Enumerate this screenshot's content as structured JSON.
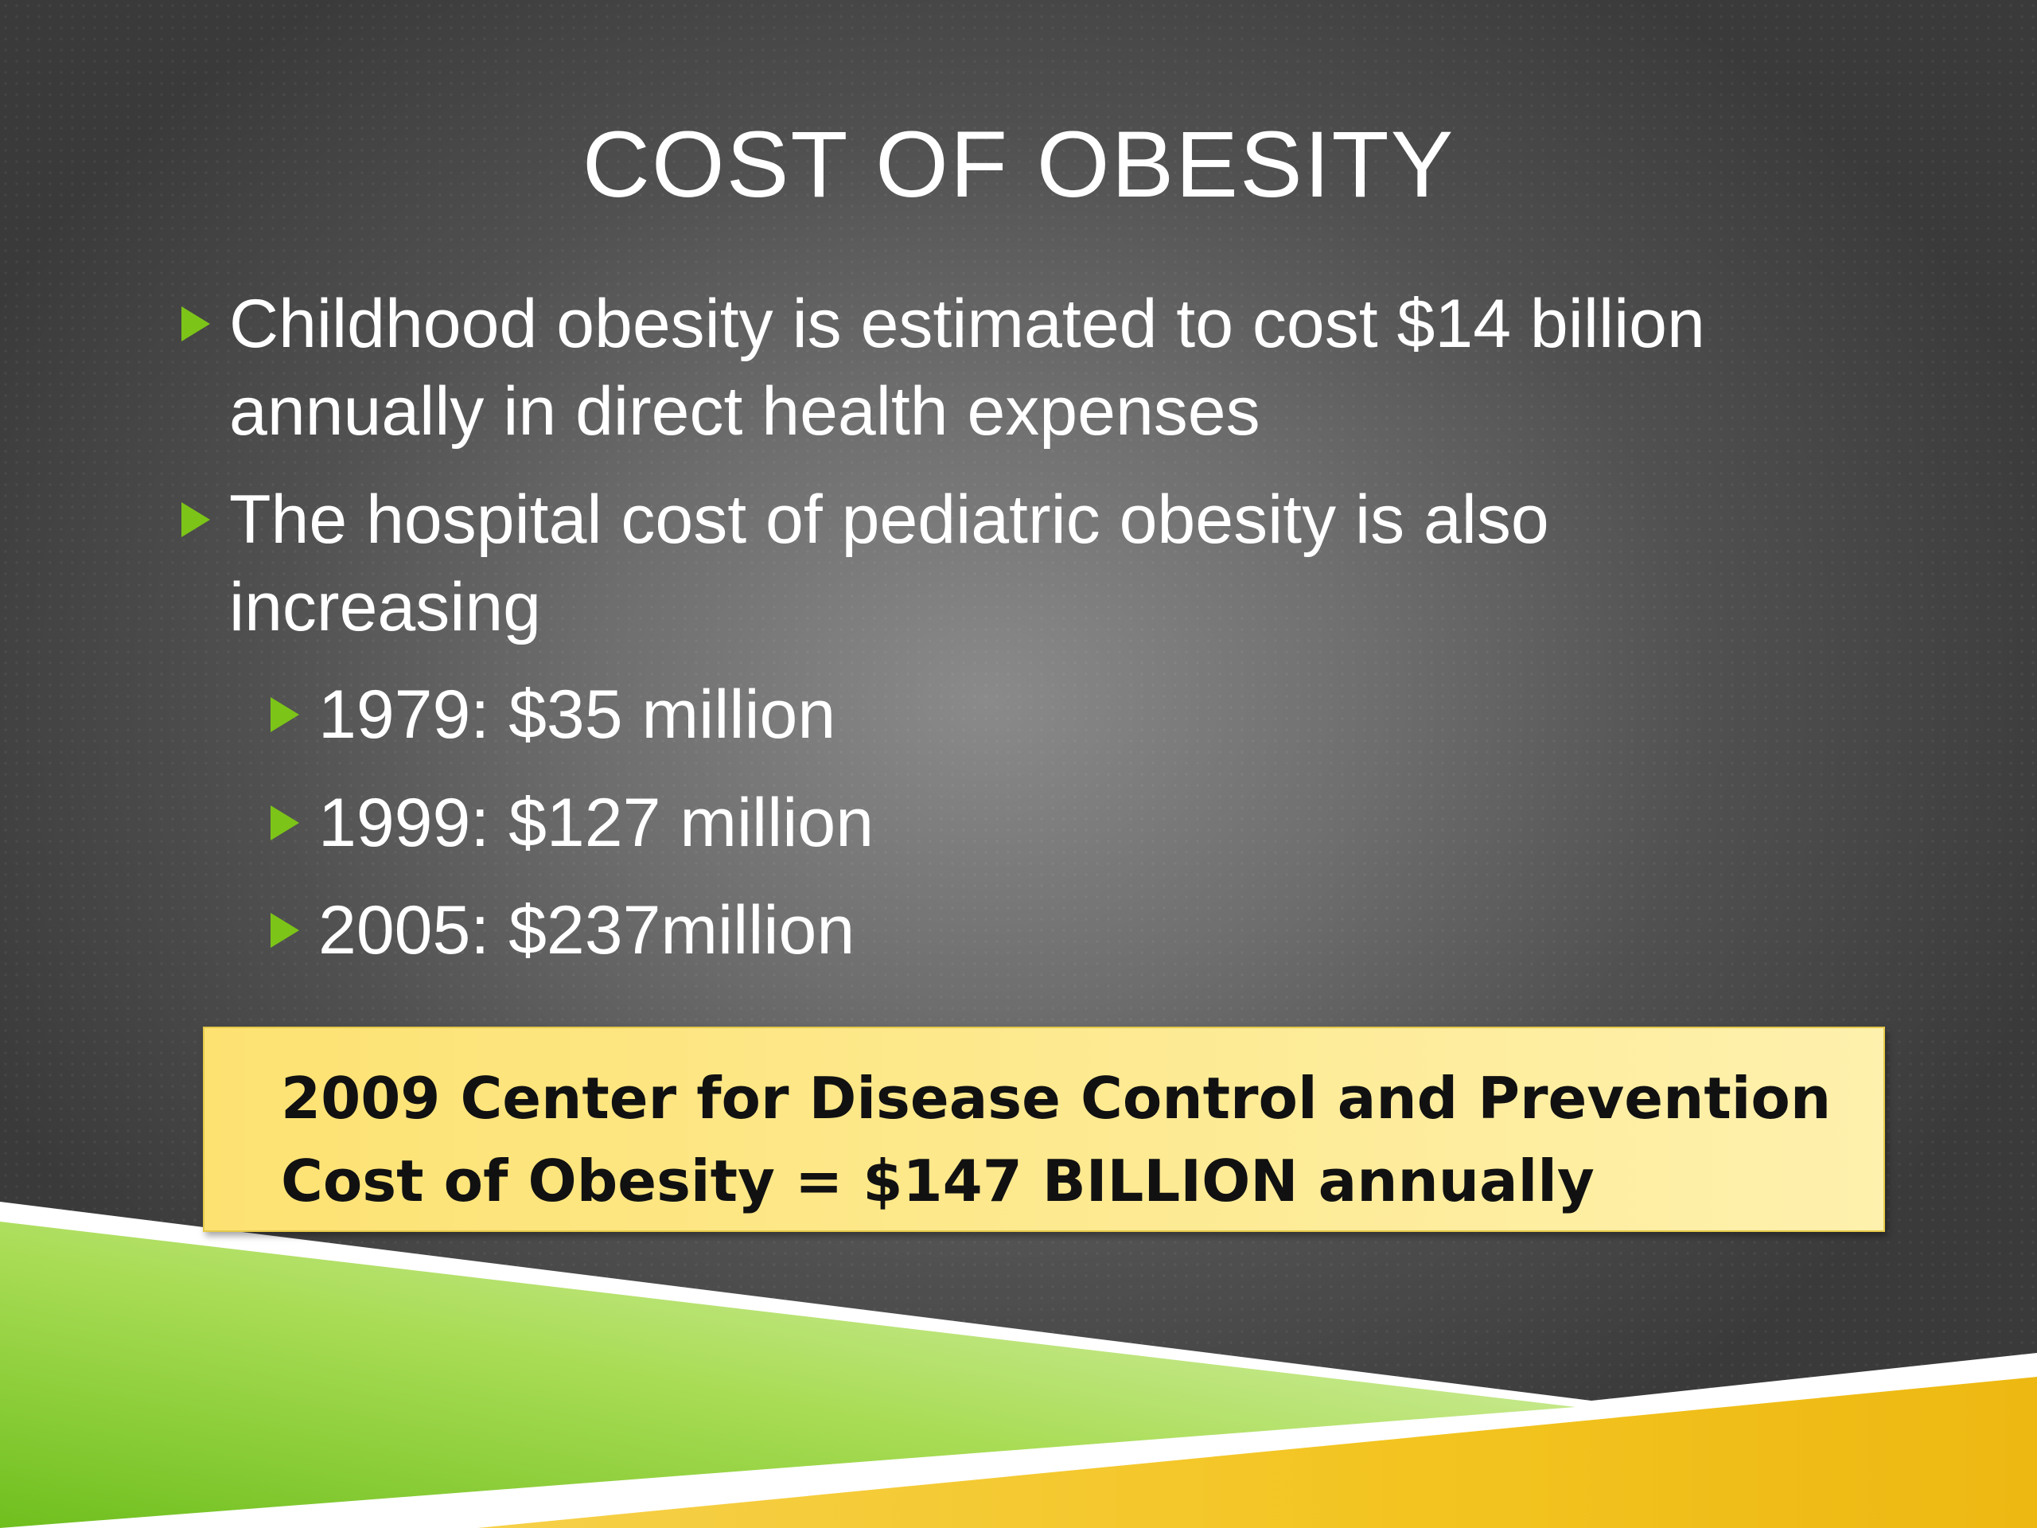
{
  "slide": {
    "title": "COST OF OBESITY",
    "bullets": [
      {
        "text": "Childhood obesity is estimated to cost $14 billion annually in direct health expenses"
      },
      {
        "text": "The hospital cost of pediatric obesity is also increasing"
      }
    ],
    "sub_bullets": [
      {
        "text": "1979: $35 million"
      },
      {
        "text": "1999: $127 million"
      },
      {
        "text": "2005: $237million"
      }
    ],
    "callout": {
      "line1": "2009 Center for Disease Control and Prevention",
      "line2": "Cost of Obesity = $147 BILLION annually"
    },
    "colors": {
      "bullet_arrow": "#7cc418",
      "callout_fill": "#fde98f",
      "accent_green": "#8fd22e",
      "accent_yellow": "#f3c11c"
    },
    "icons": {
      "bullet": "green-triangle-arrow-icon"
    }
  }
}
